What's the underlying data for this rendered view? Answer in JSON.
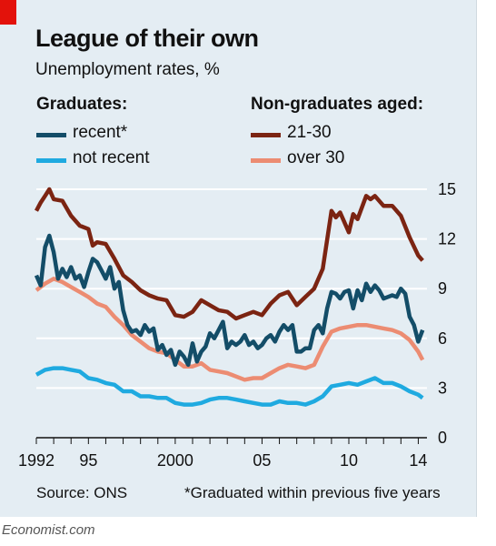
{
  "title": "League of their own",
  "subtitle": "Unemployment rates, %",
  "legend": {
    "graduates_heading": "Graduates:",
    "non_graduates_heading": "Non-graduates aged:"
  },
  "source": "Source: ONS",
  "footnote": "*Graduated within previous five years",
  "brand": "Economist.com",
  "colors": {
    "recent": "#134d68",
    "not_recent": "#1faae0",
    "aged_21_30": "#7b2412",
    "over_30": "#ec8c72",
    "background": "#e4edf3",
    "accent": "#e3120b"
  },
  "chart_data": {
    "type": "line",
    "title": "League of their own",
    "subtitle": "Unemployment rates, %",
    "xlabel": "",
    "ylabel": "",
    "x_range": [
      1992,
      2014.5
    ],
    "ylim": [
      0,
      15
    ],
    "y_ticks": [
      0,
      3,
      6,
      9,
      12,
      15
    ],
    "y_axis_side": "right",
    "x_ticks": [
      {
        "value": 1992,
        "label": "1992"
      },
      {
        "value": 1995,
        "label": "95"
      },
      {
        "value": 2000,
        "label": "2000"
      },
      {
        "value": 2005,
        "label": "05"
      },
      {
        "value": 2010,
        "label": "10"
      },
      {
        "value": 2014,
        "label": "14"
      }
    ],
    "grid": true,
    "series": [
      {
        "name": "recent*",
        "group": "graduates",
        "color": "#134d68",
        "points": [
          [
            1992,
            9.8
          ],
          [
            1992.25,
            9.2
          ],
          [
            1992.5,
            11.5
          ],
          [
            1992.75,
            12.2
          ],
          [
            1993,
            11.2
          ],
          [
            1993.25,
            9.6
          ],
          [
            1993.5,
            10.2
          ],
          [
            1993.75,
            9.7
          ],
          [
            1994,
            10.3
          ],
          [
            1994.25,
            9.6
          ],
          [
            1994.5,
            9.8
          ],
          [
            1994.75,
            9.1
          ],
          [
            1995,
            10.0
          ],
          [
            1995.25,
            10.8
          ],
          [
            1995.5,
            10.6
          ],
          [
            1995.75,
            10.1
          ],
          [
            1996,
            9.6
          ],
          [
            1996.25,
            10.3
          ],
          [
            1996.5,
            9.0
          ],
          [
            1996.75,
            9.4
          ],
          [
            1997,
            7.7
          ],
          [
            1997.25,
            6.8
          ],
          [
            1997.5,
            6.4
          ],
          [
            1997.75,
            6.5
          ],
          [
            1998,
            6.2
          ],
          [
            1998.25,
            6.8
          ],
          [
            1998.5,
            6.4
          ],
          [
            1998.75,
            6.6
          ],
          [
            1999,
            5.3
          ],
          [
            1999.25,
            5.6
          ],
          [
            1999.5,
            5.0
          ],
          [
            1999.75,
            5.3
          ],
          [
            2000,
            4.4
          ],
          [
            2000.25,
            5.2
          ],
          [
            2000.5,
            4.9
          ],
          [
            2000.75,
            4.4
          ],
          [
            2001,
            5.7
          ],
          [
            2001.25,
            4.6
          ],
          [
            2001.5,
            5.2
          ],
          [
            2001.75,
            5.5
          ],
          [
            2002,
            6.3
          ],
          [
            2002.25,
            6.0
          ],
          [
            2002.5,
            6.5
          ],
          [
            2002.75,
            7.0
          ],
          [
            2003,
            5.4
          ],
          [
            2003.25,
            5.8
          ],
          [
            2003.5,
            5.6
          ],
          [
            2003.75,
            5.8
          ],
          [
            2004,
            6.2
          ],
          [
            2004.25,
            5.6
          ],
          [
            2004.5,
            5.8
          ],
          [
            2004.75,
            5.4
          ],
          [
            2005,
            5.6
          ],
          [
            2005.25,
            6.0
          ],
          [
            2005.5,
            6.2
          ],
          [
            2005.75,
            5.8
          ],
          [
            2006,
            6.4
          ],
          [
            2006.25,
            6.8
          ],
          [
            2006.5,
            6.5
          ],
          [
            2006.75,
            6.8
          ],
          [
            2007,
            5.2
          ],
          [
            2007.25,
            5.2
          ],
          [
            2007.5,
            5.4
          ],
          [
            2007.75,
            5.4
          ],
          [
            2008,
            6.5
          ],
          [
            2008.25,
            6.8
          ],
          [
            2008.5,
            6.3
          ],
          [
            2008.75,
            7.8
          ],
          [
            2009,
            8.8
          ],
          [
            2009.25,
            8.7
          ],
          [
            2009.5,
            8.4
          ],
          [
            2009.75,
            8.8
          ],
          [
            2010,
            8.9
          ],
          [
            2010.25,
            7.8
          ],
          [
            2010.5,
            8.9
          ],
          [
            2010.75,
            8.3
          ],
          [
            2011,
            9.3
          ],
          [
            2011.25,
            8.8
          ],
          [
            2011.5,
            9.2
          ],
          [
            2011.75,
            8.9
          ],
          [
            2012,
            8.4
          ],
          [
            2012.25,
            8.5
          ],
          [
            2012.5,
            8.6
          ],
          [
            2012.75,
            8.5
          ],
          [
            2013,
            9.0
          ],
          [
            2013.25,
            8.7
          ],
          [
            2013.5,
            7.3
          ],
          [
            2013.75,
            6.8
          ],
          [
            2014,
            5.8
          ],
          [
            2014.25,
            6.5
          ]
        ]
      },
      {
        "name": "not recent",
        "group": "graduates",
        "color": "#1faae0",
        "points": [
          [
            1992,
            3.8
          ],
          [
            1992.5,
            4.1
          ],
          [
            1993,
            4.2
          ],
          [
            1993.5,
            4.2
          ],
          [
            1994,
            4.1
          ],
          [
            1994.5,
            4.0
          ],
          [
            1995,
            3.6
          ],
          [
            1995.5,
            3.5
          ],
          [
            1996,
            3.3
          ],
          [
            1996.5,
            3.2
          ],
          [
            1997,
            2.8
          ],
          [
            1997.5,
            2.8
          ],
          [
            1998,
            2.5
          ],
          [
            1998.5,
            2.5
          ],
          [
            1999,
            2.4
          ],
          [
            1999.5,
            2.4
          ],
          [
            2000,
            2.1
          ],
          [
            2000.5,
            2.0
          ],
          [
            2001,
            2.0
          ],
          [
            2001.5,
            2.1
          ],
          [
            2002,
            2.3
          ],
          [
            2002.5,
            2.4
          ],
          [
            2003,
            2.4
          ],
          [
            2003.5,
            2.3
          ],
          [
            2004,
            2.2
          ],
          [
            2004.5,
            2.1
          ],
          [
            2005,
            2.0
          ],
          [
            2005.5,
            2.0
          ],
          [
            2006,
            2.2
          ],
          [
            2006.5,
            2.1
          ],
          [
            2007,
            2.1
          ],
          [
            2007.5,
            2.0
          ],
          [
            2008,
            2.2
          ],
          [
            2008.5,
            2.5
          ],
          [
            2009,
            3.1
          ],
          [
            2009.5,
            3.2
          ],
          [
            2010,
            3.3
          ],
          [
            2010.5,
            3.2
          ],
          [
            2011,
            3.4
          ],
          [
            2011.5,
            3.6
          ],
          [
            2012,
            3.3
          ],
          [
            2012.5,
            3.3
          ],
          [
            2013,
            3.1
          ],
          [
            2013.5,
            2.8
          ],
          [
            2014,
            2.6
          ],
          [
            2014.25,
            2.4
          ]
        ]
      },
      {
        "name": "21-30",
        "group": "non-graduates",
        "color": "#7b2412",
        "points": [
          [
            1992,
            13.7
          ],
          [
            1992.25,
            14.2
          ],
          [
            1992.5,
            14.6
          ],
          [
            1992.75,
            15.0
          ],
          [
            1993,
            14.4
          ],
          [
            1993.5,
            14.3
          ],
          [
            1994,
            13.4
          ],
          [
            1994.5,
            12.8
          ],
          [
            1995,
            12.6
          ],
          [
            1995.25,
            11.6
          ],
          [
            1995.5,
            11.8
          ],
          [
            1996,
            11.7
          ],
          [
            1996.5,
            10.8
          ],
          [
            1997,
            9.8
          ],
          [
            1997.5,
            9.4
          ],
          [
            1998,
            8.9
          ],
          [
            1998.5,
            8.6
          ],
          [
            1999,
            8.4
          ],
          [
            1999.5,
            8.3
          ],
          [
            2000,
            7.4
          ],
          [
            2000.5,
            7.3
          ],
          [
            2001,
            7.6
          ],
          [
            2001.5,
            8.3
          ],
          [
            2002,
            8.0
          ],
          [
            2002.5,
            7.7
          ],
          [
            2003,
            7.6
          ],
          [
            2003.5,
            7.2
          ],
          [
            2004,
            7.4
          ],
          [
            2004.5,
            7.6
          ],
          [
            2005,
            7.4
          ],
          [
            2005.5,
            8.1
          ],
          [
            2006,
            8.6
          ],
          [
            2006.5,
            8.8
          ],
          [
            2007,
            8.0
          ],
          [
            2007.5,
            8.5
          ],
          [
            2008,
            9.0
          ],
          [
            2008.5,
            10.2
          ],
          [
            2009,
            13.7
          ],
          [
            2009.25,
            13.3
          ],
          [
            2009.5,
            13.6
          ],
          [
            2010,
            12.4
          ],
          [
            2010.25,
            13.5
          ],
          [
            2010.5,
            13.2
          ],
          [
            2011,
            14.6
          ],
          [
            2011.25,
            14.4
          ],
          [
            2011.5,
            14.6
          ],
          [
            2012,
            14.0
          ],
          [
            2012.5,
            14.0
          ],
          [
            2013,
            13.4
          ],
          [
            2013.5,
            12.1
          ],
          [
            2014,
            11.0
          ],
          [
            2014.25,
            10.7
          ]
        ]
      },
      {
        "name": "over 30",
        "group": "non-graduates",
        "color": "#ec8c72",
        "points": [
          [
            1992,
            8.9
          ],
          [
            1992.5,
            9.3
          ],
          [
            1993,
            9.6
          ],
          [
            1993.5,
            9.4
          ],
          [
            1994,
            9.1
          ],
          [
            1994.5,
            8.8
          ],
          [
            1995,
            8.5
          ],
          [
            1995.5,
            8.1
          ],
          [
            1996,
            7.9
          ],
          [
            1996.5,
            7.3
          ],
          [
            1997,
            6.8
          ],
          [
            1997.5,
            6.2
          ],
          [
            1998,
            5.8
          ],
          [
            1998.5,
            5.4
          ],
          [
            1999,
            5.2
          ],
          [
            1999.5,
            5.1
          ],
          [
            2000,
            4.7
          ],
          [
            2000.5,
            4.3
          ],
          [
            2001,
            4.3
          ],
          [
            2001.5,
            4.5
          ],
          [
            2002,
            4.1
          ],
          [
            2002.5,
            4.0
          ],
          [
            2003,
            3.9
          ],
          [
            2003.5,
            3.7
          ],
          [
            2004,
            3.5
          ],
          [
            2004.5,
            3.6
          ],
          [
            2005,
            3.6
          ],
          [
            2005.5,
            3.9
          ],
          [
            2006,
            4.2
          ],
          [
            2006.5,
            4.4
          ],
          [
            2007,
            4.3
          ],
          [
            2007.5,
            4.2
          ],
          [
            2008,
            4.4
          ],
          [
            2008.5,
            5.5
          ],
          [
            2009,
            6.4
          ],
          [
            2009.5,
            6.6
          ],
          [
            2010,
            6.7
          ],
          [
            2010.5,
            6.8
          ],
          [
            2011,
            6.8
          ],
          [
            2011.5,
            6.7
          ],
          [
            2012,
            6.6
          ],
          [
            2012.5,
            6.5
          ],
          [
            2013,
            6.3
          ],
          [
            2013.5,
            5.9
          ],
          [
            2014,
            5.2
          ],
          [
            2014.25,
            4.7
          ]
        ]
      }
    ]
  }
}
